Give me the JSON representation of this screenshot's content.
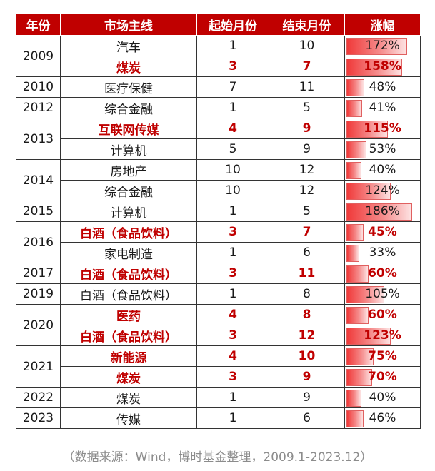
{
  "table": {
    "headers": [
      "年份",
      "市场主线",
      "起始月份",
      "结束月份",
      "涨幅"
    ],
    "max_gain": 186,
    "rows": [
      {
        "year": "2009",
        "year_rowspan": 2,
        "main": "汽车",
        "start": "1",
        "end": "10",
        "gain": "172%",
        "gain_value": 172,
        "highlight": false
      },
      {
        "year": null,
        "main": "煤炭",
        "start": "3",
        "end": "7",
        "gain": "158%",
        "gain_value": 158,
        "highlight": true
      },
      {
        "year": "2010",
        "year_rowspan": 1,
        "main": "医疗保健",
        "start": "7",
        "end": "11",
        "gain": "48%",
        "gain_value": 48,
        "highlight": false
      },
      {
        "year": "2012",
        "year_rowspan": 1,
        "main": "综合金融",
        "start": "1",
        "end": "5",
        "gain": "41%",
        "gain_value": 41,
        "highlight": false
      },
      {
        "year": "2013",
        "year_rowspan": 2,
        "main": "互联网传媒",
        "start": "4",
        "end": "9",
        "gain": "115%",
        "gain_value": 115,
        "highlight": true
      },
      {
        "year": null,
        "main": "计算机",
        "start": "5",
        "end": "9",
        "gain": "53%",
        "gain_value": 53,
        "highlight": false
      },
      {
        "year": "2014",
        "year_rowspan": 2,
        "main": "房地产",
        "start": "10",
        "end": "12",
        "gain": "40%",
        "gain_value": 40,
        "highlight": false
      },
      {
        "year": null,
        "main": "综合金融",
        "start": "10",
        "end": "12",
        "gain": "124%",
        "gain_value": 124,
        "highlight": false
      },
      {
        "year": "2015",
        "year_rowspan": 1,
        "main": "计算机",
        "start": "1",
        "end": "5",
        "gain": "186%",
        "gain_value": 186,
        "highlight": false
      },
      {
        "year": "2016",
        "year_rowspan": 2,
        "main": "白酒（食品饮料）",
        "start": "3",
        "end": "7",
        "gain": "45%",
        "gain_value": 45,
        "highlight": true
      },
      {
        "year": null,
        "main": "家电制造",
        "start": "1",
        "end": "6",
        "gain": "33%",
        "gain_value": 33,
        "highlight": false
      },
      {
        "year": "2017",
        "year_rowspan": 1,
        "main": "白酒（食品饮料）",
        "start": "3",
        "end": "11",
        "gain": "60%",
        "gain_value": 60,
        "highlight": true
      },
      {
        "year": "2019",
        "year_rowspan": 1,
        "main": "白酒（食品饮料）",
        "start": "1",
        "end": "8",
        "gain": "105%",
        "gain_value": 105,
        "highlight": false
      },
      {
        "year": "2020",
        "year_rowspan": 2,
        "main": "医药",
        "start": "4",
        "end": "8",
        "gain": "60%",
        "gain_value": 60,
        "highlight": true
      },
      {
        "year": null,
        "main": "白酒（食品饮料）",
        "start": "3",
        "end": "12",
        "gain": "123%",
        "gain_value": 123,
        "highlight": true
      },
      {
        "year": "2021",
        "year_rowspan": 2,
        "main": "新能源",
        "start": "4",
        "end": "10",
        "gain": "75%",
        "gain_value": 75,
        "highlight": true
      },
      {
        "year": null,
        "main": "煤炭",
        "start": "3",
        "end": "9",
        "gain": "70%",
        "gain_value": 70,
        "highlight": true
      },
      {
        "year": "2022",
        "year_rowspan": 1,
        "main": "煤炭",
        "start": "1",
        "end": "9",
        "gain": "40%",
        "gain_value": 40,
        "highlight": false
      },
      {
        "year": "2023",
        "year_rowspan": 1,
        "main": "传媒",
        "start": "1",
        "end": "6",
        "gain": "46%",
        "gain_value": 46,
        "highlight": false
      }
    ]
  },
  "source": "（数据来源：Wind，博时基金整理，2009.1-2023.12）",
  "colors": {
    "header_bg": "#c00000",
    "highlight_text": "#c00000",
    "bar": "#f03a3a"
  }
}
